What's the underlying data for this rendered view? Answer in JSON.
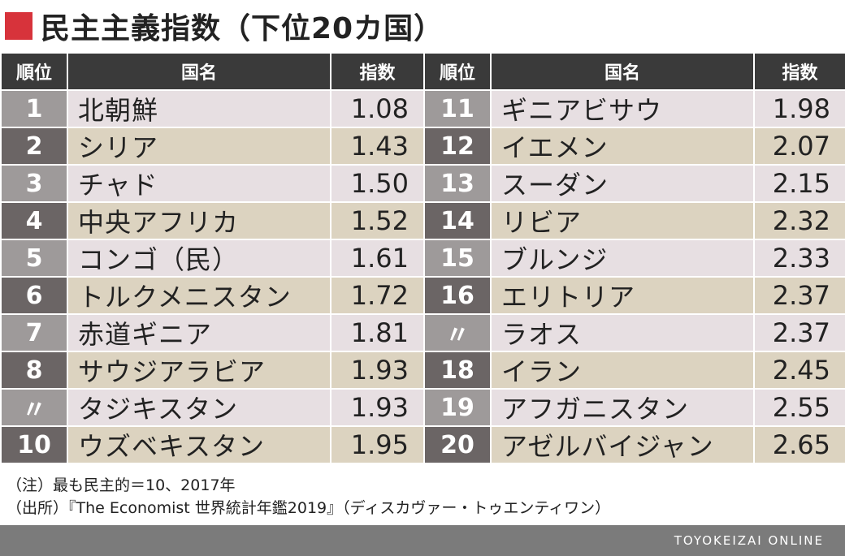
{
  "title": "民主主義指数（下位20カ国）",
  "headers": {
    "rank": "順位",
    "name": "国名",
    "index": "指数"
  },
  "left_rows": [
    {
      "rank": "1",
      "name": "北朝鮮",
      "index": "1.08"
    },
    {
      "rank": "2",
      "name": "シリア",
      "index": "1.43"
    },
    {
      "rank": "3",
      "name": "チャド",
      "index": "1.50"
    },
    {
      "rank": "4",
      "name": "中央アフリカ",
      "index": "1.52"
    },
    {
      "rank": "5",
      "name": "コンゴ（民）",
      "index": "1.61"
    },
    {
      "rank": "6",
      "name": "トルクメニスタン",
      "index": "1.72"
    },
    {
      "rank": "7",
      "name": "赤道ギニア",
      "index": "1.81"
    },
    {
      "rank": "8",
      "name": "サウジアラビア",
      "index": "1.93"
    },
    {
      "rank": "〃",
      "name": "タジキスタン",
      "index": "1.93"
    },
    {
      "rank": "10",
      "name": "ウズベキスタン",
      "index": "1.95"
    }
  ],
  "right_rows": [
    {
      "rank": "11",
      "name": "ギニアビサウ",
      "index": "1.98"
    },
    {
      "rank": "12",
      "name": "イエメン",
      "index": "2.07"
    },
    {
      "rank": "13",
      "name": "スーダン",
      "index": "2.15"
    },
    {
      "rank": "14",
      "name": "リビア",
      "index": "2.32"
    },
    {
      "rank": "15",
      "name": "ブルンジ",
      "index": "2.33"
    },
    {
      "rank": "16",
      "name": "エリトリア",
      "index": "2.37"
    },
    {
      "rank": "〃",
      "name": "ラオス",
      "index": "2.37"
    },
    {
      "rank": "18",
      "name": "イラン",
      "index": "2.45"
    },
    {
      "rank": "19",
      "name": "アフガニスタン",
      "index": "2.55"
    },
    {
      "rank": "20",
      "name": "アゼルバイジャン",
      "index": "2.65"
    }
  ],
  "notes": {
    "note": "（注）最も民主的＝10、2017年",
    "source": "（出所）『The Economist 世界統計年鑑2019』（ディスカヴァー・トゥエンティワン）"
  },
  "footer": "TOYOKEIZAI ONLINE",
  "colors": {
    "accent": "#d7333b",
    "header": "#3a3a3a"
  }
}
